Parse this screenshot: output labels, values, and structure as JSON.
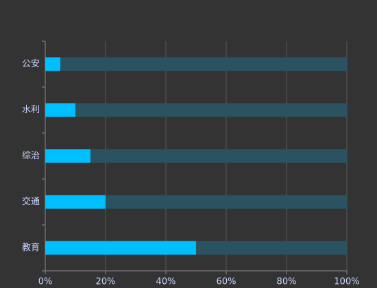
{
  "chart_data": {
    "type": "bar",
    "orientation": "horizontal",
    "categories": [
      "公安",
      "水利",
      "综治",
      "交通",
      "教育"
    ],
    "values": [
      5,
      10,
      15,
      20,
      50
    ],
    "color": "#00bfff",
    "track_color": "#2b5260",
    "xlim": [
      0,
      100
    ],
    "xticks": [
      {
        "value": 0,
        "label": "0%"
      },
      {
        "value": 20,
        "label": "20%"
      },
      {
        "value": 40,
        "label": "40%"
      },
      {
        "value": 60,
        "label": "60%"
      },
      {
        "value": 80,
        "label": "80%"
      },
      {
        "value": 100,
        "label": "100%"
      }
    ],
    "grid": true
  }
}
